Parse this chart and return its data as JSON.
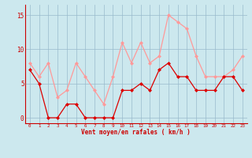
{
  "x": [
    0,
    1,
    2,
    3,
    4,
    5,
    6,
    7,
    8,
    9,
    10,
    11,
    12,
    13,
    14,
    15,
    16,
    17,
    18,
    19,
    20,
    21,
    22,
    23
  ],
  "mean_wind": [
    7,
    5,
    0,
    0,
    2,
    2,
    0,
    0,
    0,
    0,
    4,
    4,
    5,
    4,
    7,
    8,
    6,
    6,
    4,
    4,
    4,
    6,
    6,
    4
  ],
  "gust_wind": [
    8,
    6,
    8,
    3,
    4,
    8,
    6,
    4,
    2,
    6,
    11,
    8,
    11,
    8,
    9,
    15,
    14,
    13,
    9,
    6,
    6,
    6,
    7,
    9
  ],
  "mean_color": "#dd0000",
  "gust_color": "#ff9999",
  "bg_color": "#cce8ee",
  "grid_color": "#99bbcc",
  "axis_color": "#cc0000",
  "xlabel": "Vent moyen/en rafales ( km/h )",
  "xlabel_color": "#cc0000",
  "ytick_labels": [
    "0",
    "5",
    "10",
    "15"
  ],
  "ytick_vals": [
    0,
    5,
    10,
    15
  ],
  "ylim": [
    -0.8,
    16.5
  ],
  "xlim": [
    -0.5,
    23.5
  ]
}
